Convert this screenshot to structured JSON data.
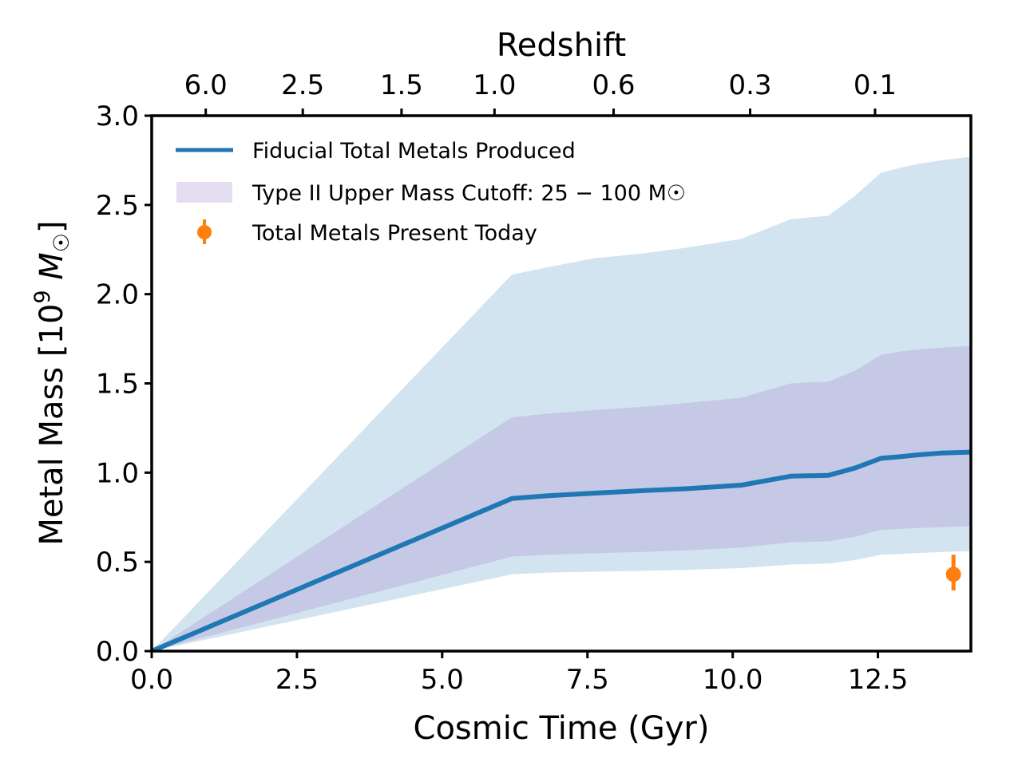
{
  "chart_data": {
    "type": "line",
    "xlabel": "Cosmic Time (Gyr)",
    "ylabel_text": "Metal Mass [10",
    "ylabel_exp": "9",
    "ylabel_unit": " M",
    "ylabel_sub": "☉",
    "ylabel_close": "]",
    "top_axis_label": "Redshift",
    "xlim": [
      0,
      14.1
    ],
    "ylim": [
      0,
      3.0
    ],
    "xticks": [
      "0.0",
      "2.5",
      "5.0",
      "7.5",
      "10.0",
      "12.5"
    ],
    "xtick_values": [
      0,
      2.5,
      5.0,
      7.5,
      10.0,
      12.5
    ],
    "yticks": [
      "0.0",
      "0.5",
      "1.0",
      "1.5",
      "2.0",
      "2.5",
      "3.0"
    ],
    "ytick_values": [
      0,
      0.5,
      1.0,
      1.5,
      2.0,
      2.5,
      3.0
    ],
    "top_ticks": [
      "6.0",
      "2.5",
      "1.5",
      "1.0",
      "0.6",
      "0.3",
      "0.1"
    ],
    "top_tick_positions_gyr": [
      0.93,
      2.6,
      4.3,
      5.9,
      7.95,
      10.3,
      12.45
    ],
    "legend_placement": "top-left",
    "series": [
      {
        "name": "Fiducial Total Metals Produced",
        "color": "#1f77b4",
        "x": [
          0,
          6.2,
          6.8,
          7.6,
          8.5,
          9.2,
          10.15,
          11.0,
          11.65,
          12.1,
          12.55,
          12.9,
          13.2,
          13.6,
          14.1
        ],
        "y": [
          0,
          0.855,
          0.87,
          0.885,
          0.9,
          0.91,
          0.93,
          0.98,
          0.985,
          1.025,
          1.08,
          1.09,
          1.1,
          1.11,
          1.115
        ]
      }
    ],
    "bands": [
      {
        "name": "",
        "color": "#1f77b4",
        "opacity": 0.2,
        "x": [
          0,
          6.2,
          6.8,
          7.6,
          8.5,
          9.2,
          10.15,
          11.0,
          11.65,
          12.1,
          12.55,
          12.9,
          13.2,
          13.6,
          14.1
        ],
        "upper": [
          0,
          2.11,
          2.15,
          2.2,
          2.23,
          2.26,
          2.31,
          2.42,
          2.44,
          2.55,
          2.68,
          2.71,
          2.73,
          2.75,
          2.77
        ],
        "lower": [
          0,
          0.43,
          0.44,
          0.445,
          0.45,
          0.455,
          0.465,
          0.485,
          0.49,
          0.51,
          0.54,
          0.545,
          0.55,
          0.555,
          0.56
        ]
      },
      {
        "name": "Type II Upper Mass Cutoff: 25 − 100 M☉",
        "color": "#9467bd",
        "opacity": 0.22,
        "x": [
          0,
          6.2,
          6.8,
          7.6,
          8.5,
          9.2,
          10.15,
          11.0,
          11.65,
          12.1,
          12.55,
          12.9,
          13.2,
          13.6,
          14.1
        ],
        "upper": [
          0,
          1.31,
          1.33,
          1.35,
          1.37,
          1.39,
          1.42,
          1.5,
          1.51,
          1.57,
          1.66,
          1.68,
          1.69,
          1.7,
          1.71
        ],
        "lower": [
          0,
          0.53,
          0.54,
          0.548,
          0.556,
          0.565,
          0.58,
          0.61,
          0.615,
          0.64,
          0.68,
          0.685,
          0.69,
          0.695,
          0.7
        ]
      }
    ],
    "points": [
      {
        "name": "Total Metals Present Today",
        "color": "#ff7f0e",
        "x": 13.8,
        "y": 0.43,
        "yerr_low": 0.34,
        "yerr_high": 0.54
      }
    ]
  }
}
